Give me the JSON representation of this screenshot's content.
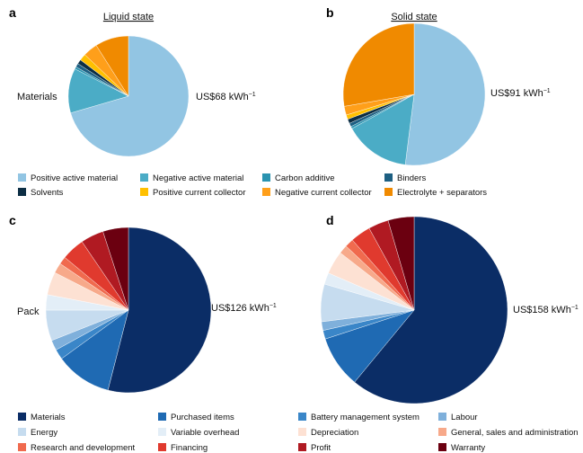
{
  "chart_data": [
    {
      "panel": "a",
      "type": "pie",
      "title": "Liquid state",
      "side_label": "Materials",
      "total_label": "US$68 kWh",
      "total_unit_sup": "−1",
      "categories": [
        "Positive active material",
        "Negative active material",
        "Carbon additive",
        "Binders",
        "Solvents",
        "Positive current collector",
        "Negative current collector",
        "Electrolyte + separators"
      ],
      "values": [
        70.5,
        12.0,
        0.6,
        1.0,
        1.2,
        1.8,
        3.9,
        9.0
      ]
    },
    {
      "panel": "b",
      "type": "pie",
      "title": "Solid state",
      "side_label": "",
      "total_label": "US$91 kWh",
      "total_unit_sup": "−1",
      "categories": [
        "Positive active material",
        "Negative active material",
        "Carbon additive",
        "Binders",
        "Solvents",
        "Positive current collector",
        "Negative current collector",
        "Electrolyte + separators"
      ],
      "values": [
        52.0,
        15.0,
        0.5,
        0.8,
        1.0,
        1.0,
        2.0,
        27.7
      ]
    },
    {
      "panel": "c",
      "type": "pie",
      "title": "",
      "side_label": "Pack",
      "total_label": "US$126 kWh",
      "total_unit_sup": "−1",
      "categories": [
        "Materials",
        "Purchased items",
        "Battery management system",
        "Labour",
        "Energy",
        "Variable overhead",
        "Depreciation",
        "General, sales and administration",
        "Research and development",
        "Financing",
        "Profit",
        "Warranty"
      ],
      "values": [
        54.0,
        11.0,
        2.0,
        2.0,
        6.0,
        3.0,
        4.5,
        2.0,
        1.5,
        4.5,
        4.5,
        5.0
      ]
    },
    {
      "panel": "d",
      "type": "pie",
      "title": "",
      "side_label": "",
      "total_label": "US$158 kWh",
      "total_unit_sup": "−1",
      "categories": [
        "Materials",
        "Purchased items",
        "Battery management system",
        "Labour",
        "Energy",
        "Variable overhead",
        "Depreciation",
        "General, sales and administration",
        "Research and development",
        "Financing",
        "Profit",
        "Warranty"
      ],
      "values": [
        61.0,
        9.0,
        1.5,
        1.5,
        6.5,
        2.0,
        4.0,
        1.5,
        1.5,
        3.5,
        3.5,
        4.5
      ]
    }
  ],
  "legend_top": {
    "items": [
      "Positive active material",
      "Negative active material",
      "Carbon additive",
      "Binders",
      "Solvents",
      "Positive current collector",
      "Negative current collector",
      "Electrolyte + separators"
    ]
  },
  "legend_bottom": {
    "items": [
      "Materials",
      "Purchased items",
      "Battery management system",
      "Labour",
      "Energy",
      "Variable overhead",
      "Depreciation",
      "General, sales and administration",
      "Research and development",
      "Financing",
      "Profit",
      "Warranty"
    ]
  },
  "colors": {
    "materials_palette": [
      "#92c5e3",
      "#4bacc6",
      "#2a93b0",
      "#1d5f82",
      "#0c2e44",
      "#ffc000",
      "#ff9f1a",
      "#f08a00"
    ],
    "pack_palette": [
      "#0b2d66",
      "#1f6ab3",
      "#3a86c8",
      "#7fb0db",
      "#c6dcef",
      "#e3eef7",
      "#fde1d3",
      "#f7a98a",
      "#f06a4e",
      "#e03a2e",
      "#b01a22",
      "#6b0010"
    ]
  }
}
